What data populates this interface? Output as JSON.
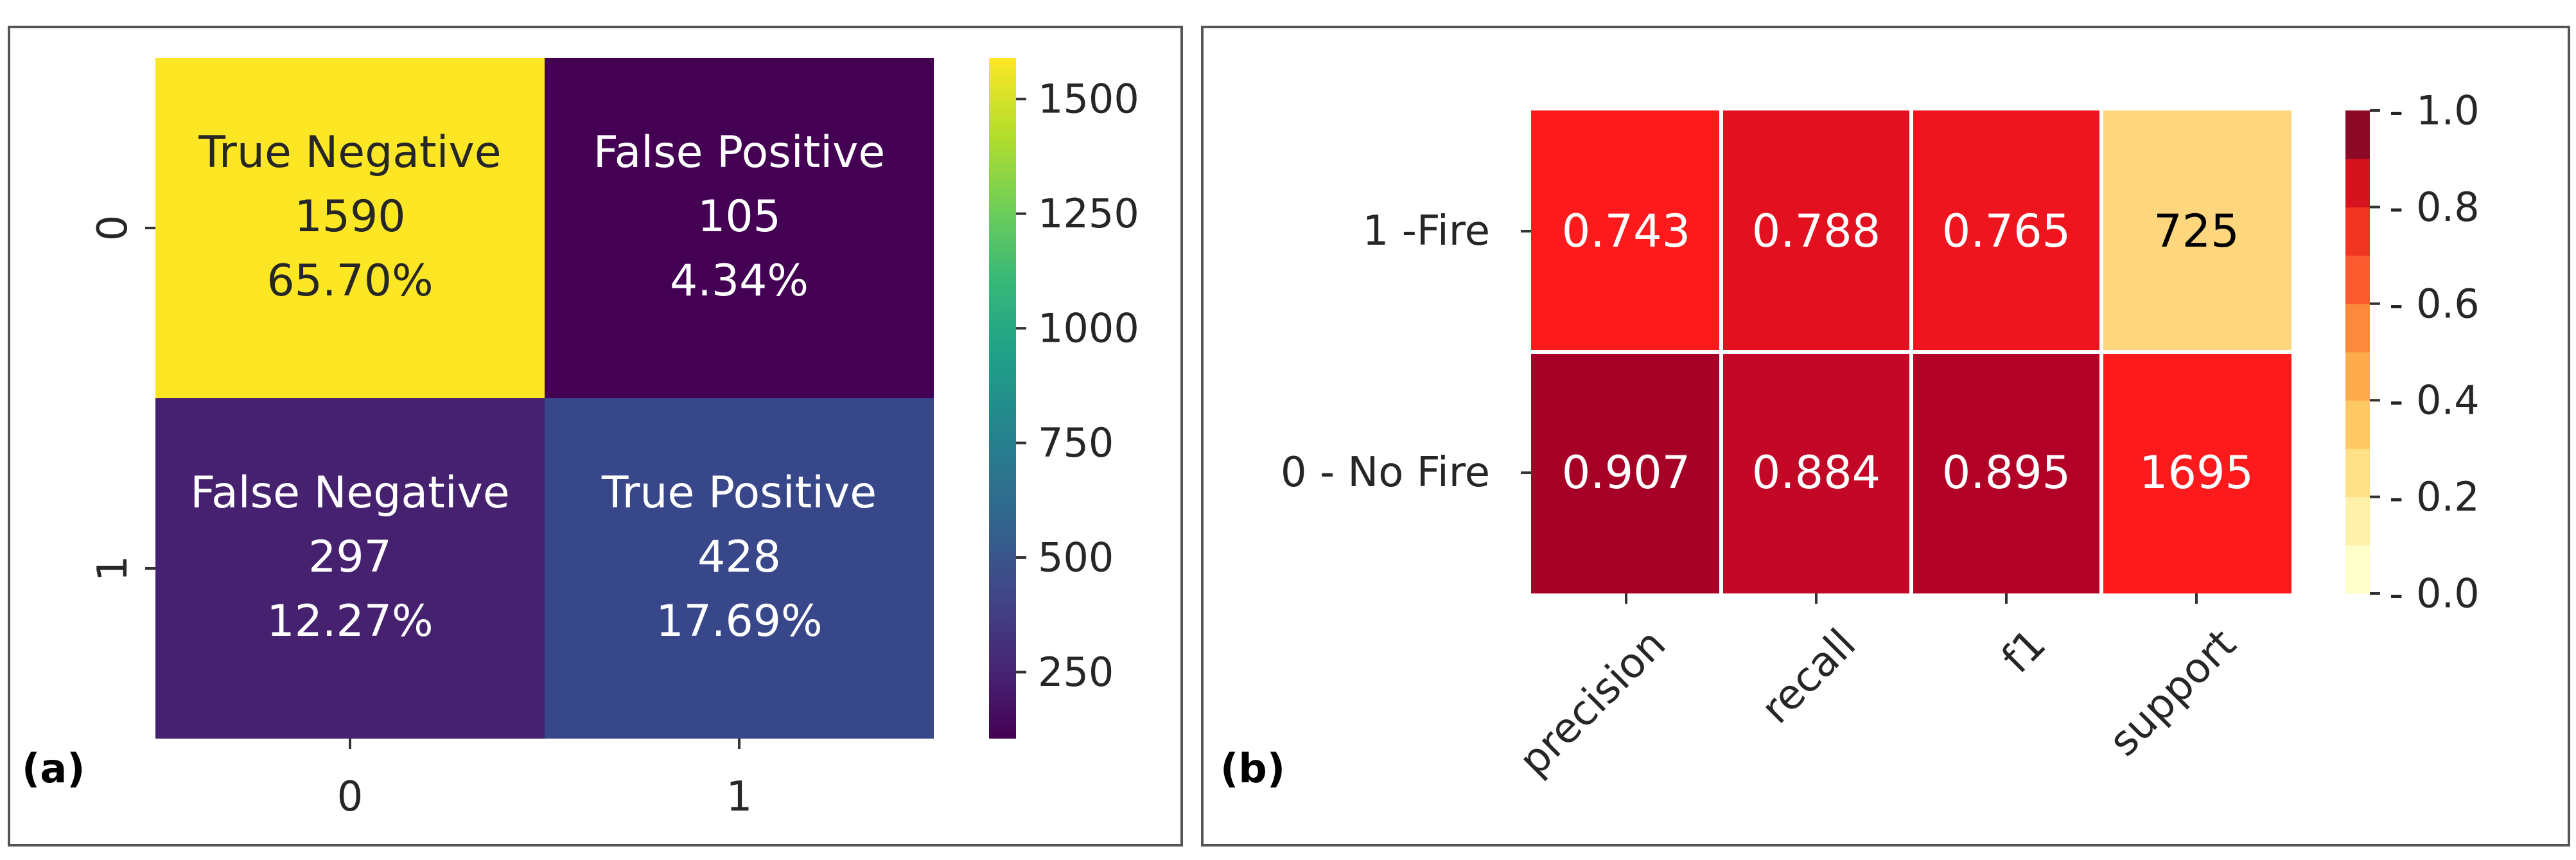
{
  "panels": {
    "a_label": "(a)",
    "b_label": "(b)"
  },
  "chart_data": [
    {
      "type": "heatmap",
      "panel": "(a)",
      "title": "",
      "xlabel": "",
      "ylabel": "",
      "x_categories": [
        "0",
        "1"
      ],
      "y_categories": [
        "0",
        "1"
      ],
      "values": [
        [
          1590,
          105
        ],
        [
          297,
          428
        ]
      ],
      "cell_labels": [
        [
          [
            "True Negative",
            "1590",
            "65.70%"
          ],
          [
            "False Positive",
            "105",
            "4.34%"
          ]
        ],
        [
          [
            "False Negative",
            "297",
            "12.27%"
          ],
          [
            "True Positive",
            "428",
            "17.69%"
          ]
        ]
      ],
      "colormap": "viridis",
      "color_range": [
        105,
        1590
      ],
      "colorbar_ticks": [
        250,
        500,
        750,
        1000,
        1250,
        1500
      ],
      "colorbar_tick_labels": [
        "250",
        "500",
        "750",
        "1000",
        "1250",
        "1500"
      ],
      "colors": {
        "1590": "#fde725",
        "105": "#440154",
        "297": "#46216f",
        "428": "#38468a"
      }
    },
    {
      "type": "heatmap",
      "panel": "(b)",
      "title": "",
      "xlabel": "",
      "ylabel": "",
      "x_categories": [
        "precision",
        "recall",
        "f1",
        "support"
      ],
      "y_categories": [
        "1 -Fire",
        "0 - No Fire"
      ],
      "values": [
        [
          0.743,
          0.788,
          0.765,
          725
        ],
        [
          0.907,
          0.884,
          0.895,
          1695
        ]
      ],
      "cell_labels": [
        [
          "0.743",
          "0.788",
          "0.765",
          "725"
        ],
        [
          "0.907",
          "0.884",
          "0.895",
          "1695"
        ]
      ],
      "colormap": "YlOrRd (10 discrete bins)",
      "color_range": [
        0.0,
        1.0
      ],
      "colorbar_ticks": [
        0.0,
        0.2,
        0.4,
        0.6,
        0.8,
        1.0
      ],
      "colorbar_tick_labels": [
        "0.0",
        "0.2",
        "0.4",
        "0.6",
        "0.8",
        "1.0"
      ],
      "cell_colors": [
        [
          "#fc1a1c",
          "#e3111f",
          "#ef151f",
          "#fed67e"
        ],
        [
          "#a60026",
          "#c20826",
          "#b30026",
          "#fc1a1c"
        ]
      ],
      "text_colors": [
        [
          "#ffffff",
          "#ffffff",
          "#ffffff",
          "#000000"
        ],
        [
          "#ffffff",
          "#ffffff",
          "#ffffff",
          "#ffffff"
        ]
      ],
      "colorbar_bins": [
        "#ffffcc",
        "#fff1a9",
        "#fee087",
        "#fec965",
        "#feab4b",
        "#fd893c",
        "#fa5b2f",
        "#f03523",
        "#d5131f",
        "#8d0a26"
      ]
    }
  ]
}
